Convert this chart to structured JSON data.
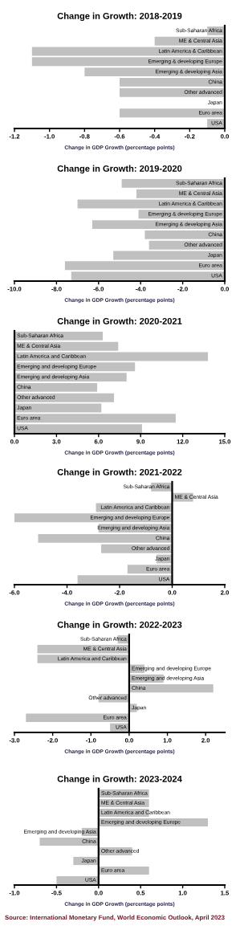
{
  "chart_data": [
    {
      "type": "bar",
      "orientation": "horizontal",
      "title": "Change in Growth: 2018-2019",
      "xlabel": "Change in GDP Growth (percentage points)",
      "categories": [
        "Sub-Saharan Africa",
        "ME & Central Asia",
        "Latin America & Caribbean",
        "Emerging & developing Europe",
        "Emerging & developing Asia",
        "China",
        "Other advanced",
        "Japan",
        "Euro area",
        "USA"
      ],
      "values": [
        -0.1,
        -0.4,
        -1.1,
        -1.1,
        -0.8,
        -0.6,
        -0.6,
        0,
        -0.6,
        -0.1
      ],
      "color": "#c0c0c0",
      "xlim": [
        -1.2,
        0
      ],
      "xticks": [
        {
          "value": -1.2,
          "label": "-1.2"
        },
        {
          "value": -1.0,
          "label": "-1.0"
        },
        {
          "value": -0.8,
          "label": "-0.8"
        },
        {
          "value": -0.6,
          "label": "-0.6"
        },
        {
          "value": -0.4,
          "label": "-0.4"
        },
        {
          "value": -0.2,
          "label": "-0.2"
        },
        {
          "value": 0,
          "label": "0.0"
        }
      ],
      "grid": false,
      "legend": false
    },
    {
      "type": "bar",
      "orientation": "horizontal",
      "title": "Change in Growth: 2019-2020",
      "xlabel": "Change in GDP Growth (percentage points)",
      "categories": [
        "Sub-Saharan Africa",
        "ME & Central Asia",
        "Latin America & Caribbean",
        "Emerging & developing Europe",
        "Emerging & developing Asia",
        "China",
        "Other advanced",
        "Japan",
        "Euro area",
        "USA"
      ],
      "values": [
        -4.9,
        -4.2,
        -7.0,
        -4.1,
        -6.3,
        -3.8,
        -3.6,
        -5.3,
        -7.6,
        -7.3
      ],
      "color": "#c0c0c0",
      "xlim": [
        -10,
        0
      ],
      "xticks": [
        {
          "value": -10,
          "label": "-10.0"
        },
        {
          "value": -8,
          "label": "-8.0"
        },
        {
          "value": -6,
          "label": "-6.0"
        },
        {
          "value": -4,
          "label": "-4.0"
        },
        {
          "value": -2,
          "label": "-2.0"
        },
        {
          "value": 0,
          "label": "0.0"
        }
      ],
      "grid": false,
      "legend": false
    },
    {
      "type": "bar",
      "orientation": "horizontal",
      "title": "Change in Growth: 2020-2021",
      "xlabel": "Change in GDP Growth (percentage points)",
      "categories": [
        "Sub-Saharan Africa",
        "ME & Central Asia",
        "Latin America and Caribbean",
        "Emerging and developing Europe",
        "Emerging and developing Asia",
        "China",
        "Other advanced",
        "Japan",
        "Euro area",
        "USA"
      ],
      "values": [
        6.3,
        7.4,
        13.8,
        8.6,
        8.0,
        5.9,
        7.1,
        6.2,
        11.5,
        9.1
      ],
      "color": "#c0c0c0",
      "xlim": [
        0,
        15
      ],
      "xticks": [
        {
          "value": 0,
          "label": "0.0"
        },
        {
          "value": 3,
          "label": "3.0"
        },
        {
          "value": 6,
          "label": "6.0"
        },
        {
          "value": 9,
          "label": "9.0"
        },
        {
          "value": 12,
          "label": "12.0"
        },
        {
          "value": 15,
          "label": "15.0"
        }
      ],
      "grid": false,
      "legend": false
    },
    {
      "type": "bar",
      "orientation": "horizontal",
      "title": "Change in Growth: 2021-2022",
      "xlabel": "Change in GDP Growth (percentage points)",
      "categories": [
        "Sub-Saharan Africa",
        "ME & Central Asia",
        "Latin America and Caribbean",
        "Emerging and developing Europe",
        "Emerging and developing Asia",
        "China",
        "Other advanced",
        "Japan",
        "Euro area",
        "USA"
      ],
      "values": [
        -0.8,
        0.8,
        -2.9,
        -6.0,
        -2.8,
        -5.1,
        -2.7,
        -0.6,
        -1.7,
        -3.6
      ],
      "color": "#c0c0c0",
      "xlim": [
        -6,
        2
      ],
      "xticks": [
        {
          "value": -6,
          "label": "-6.0"
        },
        {
          "value": -4,
          "label": "-4.0"
        },
        {
          "value": -2,
          "label": "-2.0"
        },
        {
          "value": 0,
          "label": "0.0"
        },
        {
          "value": 2,
          "label": "2.0"
        }
      ],
      "grid": false,
      "legend": false
    },
    {
      "type": "bar",
      "orientation": "horizontal",
      "title": "Change in Growth: 2022-2023",
      "xlabel": "Change in GDP Growth (percentage points)",
      "categories": [
        "Sub-Saharan Africa",
        "ME & Central Asia",
        "Latin America and Caribbean",
        "Emerging and developing Europe",
        "Emerging and developing Asia",
        "China",
        "Other advanced",
        "Japan",
        "Euro area",
        "USA"
      ],
      "values": [
        -0.3,
        -2.4,
        -2.4,
        0.4,
        0.9,
        2.2,
        -0.8,
        0.2,
        -2.7,
        -0.5
      ],
      "color": "#c0c0c0",
      "xlim": [
        -3,
        2.5
      ],
      "xticks": [
        {
          "value": -3,
          "label": "-3.0"
        },
        {
          "value": -2,
          "label": "-2.0"
        },
        {
          "value": -1,
          "label": "-1.0"
        },
        {
          "value": 0,
          "label": "0.0"
        },
        {
          "value": 1,
          "label": "1.0"
        },
        {
          "value": 2,
          "label": "2.0"
        }
      ],
      "grid": false,
      "legend": false
    },
    {
      "type": "bar",
      "orientation": "horizontal",
      "title": "Change in Growth: 2023-2024",
      "xlabel": "Change in GDP Growth (percentage points)",
      "categories": [
        "Sub-Saharan Africa",
        "ME & Central Asia",
        "Latin America and Caribbean",
        "Emerging and developing Europe",
        "Emerging and developing Asia",
        "China",
        "Other advanced",
        "Japan",
        "Euro area",
        "USA"
      ],
      "values": [
        0.6,
        0.6,
        0.6,
        1.3,
        -0.2,
        -0.7,
        0.4,
        -0.3,
        0.6,
        -0.5
      ],
      "color": "#c0c0c0",
      "xlim": [
        -1,
        1.5
      ],
      "xticks": [
        {
          "value": -1,
          "label": "-1.0"
        },
        {
          "value": -0.5,
          "label": "-0.5"
        },
        {
          "value": 0,
          "label": "0.0"
        },
        {
          "value": 0.5,
          "label": "0.5"
        },
        {
          "value": 1,
          "label": "1.0"
        },
        {
          "value": 1.5,
          "label": "1.5"
        }
      ],
      "grid": false,
      "legend": false,
      "annotations": [
        "Source: International Monetary Fund, World Economic Outlook, April 2023"
      ]
    }
  ]
}
